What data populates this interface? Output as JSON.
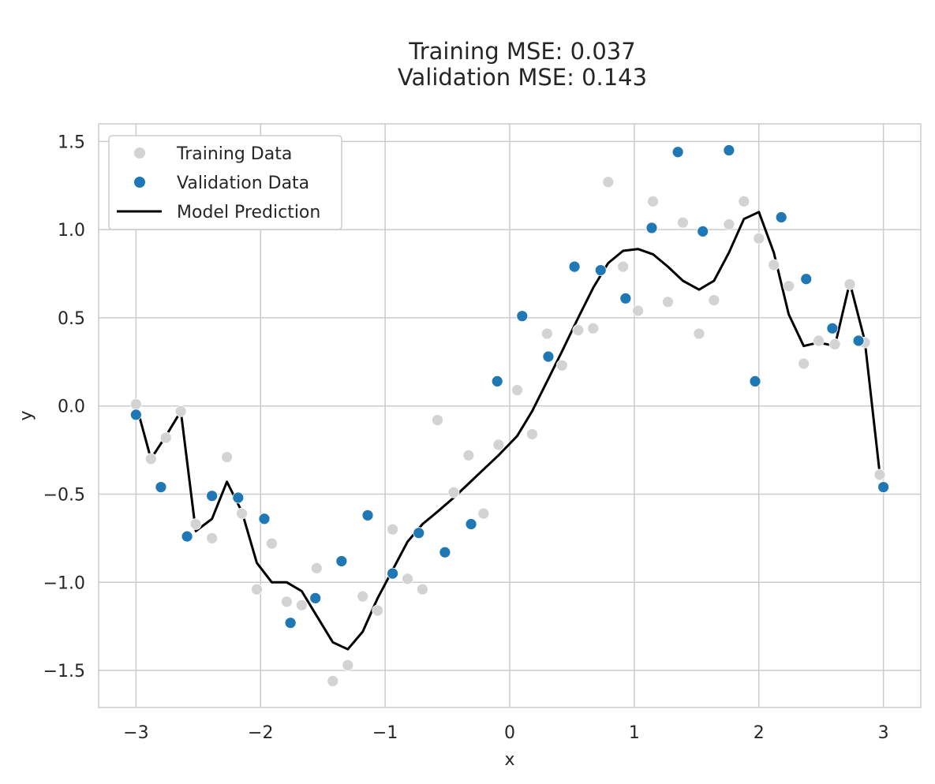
{
  "chart_data": {
    "type": "scatter",
    "title_lines": [
      "Training MSE: 0.037",
      "Validation MSE: 0.143"
    ],
    "xlabel": "x",
    "ylabel": "y",
    "xlim": [
      -3.3,
      3.3
    ],
    "ylim": [
      -1.71,
      1.6
    ],
    "xticks": [
      -3,
      -2,
      -1,
      0,
      1,
      2,
      3
    ],
    "yticks": [
      -1.5,
      -1.0,
      -0.5,
      0.0,
      0.5,
      1.0,
      1.5
    ],
    "xtick_labels": [
      "−3",
      "−2",
      "−1",
      "0",
      "1",
      "2",
      "3"
    ],
    "ytick_labels": [
      "−1.5",
      "−1.0",
      "−0.5",
      "0.0",
      "0.5",
      "1.0",
      "1.5"
    ],
    "grid": true,
    "legend_position": "upper-left",
    "colors": {
      "training": "#d3d3d3",
      "validation": "#1f77b4",
      "prediction": "#000000",
      "grid": "#cccccc",
      "spine": "#cccccc"
    },
    "series": [
      {
        "name": "Training Data",
        "kind": "scatter",
        "points": [
          [
            -3.0,
            0.01
          ],
          [
            -2.88,
            -0.3
          ],
          [
            -2.76,
            -0.18
          ],
          [
            -2.64,
            -0.03
          ],
          [
            -2.52,
            -0.67
          ],
          [
            -2.39,
            -0.75
          ],
          [
            -2.27,
            -0.29
          ],
          [
            -2.15,
            -0.61
          ],
          [
            -2.03,
            -1.04
          ],
          [
            -1.91,
            -0.78
          ],
          [
            -1.79,
            -1.11
          ],
          [
            -1.67,
            -1.13
          ],
          [
            -1.55,
            -0.92
          ],
          [
            -1.42,
            -1.56
          ],
          [
            -1.3,
            -1.47
          ],
          [
            -1.18,
            -1.08
          ],
          [
            -1.06,
            -1.16
          ],
          [
            -0.94,
            -0.7
          ],
          [
            -0.82,
            -0.98
          ],
          [
            -0.7,
            -1.04
          ],
          [
            -0.58,
            -0.08
          ],
          [
            -0.45,
            -0.49
          ],
          [
            -0.33,
            -0.28
          ],
          [
            -0.21,
            -0.61
          ],
          [
            -0.09,
            -0.22
          ],
          [
            0.06,
            0.09
          ],
          [
            0.18,
            -0.16
          ],
          [
            0.3,
            0.41
          ],
          [
            0.42,
            0.23
          ],
          [
            0.55,
            0.43
          ],
          [
            0.67,
            0.44
          ],
          [
            0.79,
            1.27
          ],
          [
            0.91,
            0.79
          ],
          [
            1.03,
            0.54
          ],
          [
            1.15,
            1.16
          ],
          [
            1.27,
            0.59
          ],
          [
            1.39,
            1.04
          ],
          [
            1.52,
            0.41
          ],
          [
            1.64,
            0.6
          ],
          [
            1.76,
            1.03
          ],
          [
            1.88,
            1.16
          ],
          [
            2.0,
            0.95
          ],
          [
            2.12,
            0.8
          ],
          [
            2.24,
            0.68
          ],
          [
            2.36,
            0.24
          ],
          [
            2.48,
            0.37
          ],
          [
            2.61,
            0.35
          ],
          [
            2.73,
            0.69
          ],
          [
            2.85,
            0.36
          ],
          [
            2.97,
            -0.39
          ]
        ]
      },
      {
        "name": "Validation Data",
        "kind": "scatter",
        "points": [
          [
            -3.0,
            -0.05
          ],
          [
            -2.8,
            -0.46
          ],
          [
            -2.59,
            -0.74
          ],
          [
            -2.39,
            -0.51
          ],
          [
            -2.18,
            -0.52
          ],
          [
            -1.97,
            -0.64
          ],
          [
            -1.76,
            -1.23
          ],
          [
            -1.56,
            -1.09
          ],
          [
            -1.35,
            -0.88
          ],
          [
            -1.14,
            -0.62
          ],
          [
            -0.94,
            -0.95
          ],
          [
            -0.73,
            -0.72
          ],
          [
            -0.52,
            -0.83
          ],
          [
            -0.31,
            -0.67
          ],
          [
            -0.1,
            0.14
          ],
          [
            0.1,
            0.51
          ],
          [
            0.31,
            0.28
          ],
          [
            0.52,
            0.79
          ],
          [
            0.73,
            0.77
          ],
          [
            0.93,
            0.61
          ],
          [
            1.14,
            1.01
          ],
          [
            1.35,
            1.44
          ],
          [
            1.55,
            0.99
          ],
          [
            1.76,
            1.45
          ],
          [
            1.97,
            0.14
          ],
          [
            2.18,
            1.07
          ],
          [
            2.38,
            0.72
          ],
          [
            2.59,
            0.44
          ],
          [
            2.8,
            0.37
          ],
          [
            3.0,
            -0.46
          ]
        ]
      },
      {
        "name": "Model Prediction",
        "kind": "line",
        "points": [
          [
            -3.0,
            0.01
          ],
          [
            -2.88,
            -0.3
          ],
          [
            -2.76,
            -0.17
          ],
          [
            -2.64,
            -0.03
          ],
          [
            -2.52,
            -0.71
          ],
          [
            -2.39,
            -0.64
          ],
          [
            -2.27,
            -0.43
          ],
          [
            -2.15,
            -0.6
          ],
          [
            -2.03,
            -0.89
          ],
          [
            -1.91,
            -1.0
          ],
          [
            -1.79,
            -1.0
          ],
          [
            -1.67,
            -1.05
          ],
          [
            -1.55,
            -1.19
          ],
          [
            -1.42,
            -1.34
          ],
          [
            -1.3,
            -1.38
          ],
          [
            -1.18,
            -1.28
          ],
          [
            -1.06,
            -1.09
          ],
          [
            -0.94,
            -0.93
          ],
          [
            -0.82,
            -0.77
          ],
          [
            -0.7,
            -0.67
          ],
          [
            -0.58,
            -0.6
          ],
          [
            -0.45,
            -0.52
          ],
          [
            -0.33,
            -0.44
          ],
          [
            -0.21,
            -0.36
          ],
          [
            -0.09,
            -0.28
          ],
          [
            0.06,
            -0.17
          ],
          [
            0.18,
            -0.03
          ],
          [
            0.3,
            0.14
          ],
          [
            0.42,
            0.31
          ],
          [
            0.55,
            0.5
          ],
          [
            0.67,
            0.67
          ],
          [
            0.79,
            0.81
          ],
          [
            0.91,
            0.88
          ],
          [
            1.03,
            0.89
          ],
          [
            1.15,
            0.86
          ],
          [
            1.27,
            0.79
          ],
          [
            1.39,
            0.71
          ],
          [
            1.52,
            0.66
          ],
          [
            1.64,
            0.71
          ],
          [
            1.76,
            0.87
          ],
          [
            1.88,
            1.06
          ],
          [
            2.0,
            1.1
          ],
          [
            2.12,
            0.87
          ],
          [
            2.24,
            0.52
          ],
          [
            2.36,
            0.34
          ],
          [
            2.48,
            0.36
          ],
          [
            2.61,
            0.34
          ],
          [
            2.73,
            0.7
          ],
          [
            2.85,
            0.37
          ],
          [
            2.97,
            -0.38
          ]
        ]
      }
    ]
  }
}
